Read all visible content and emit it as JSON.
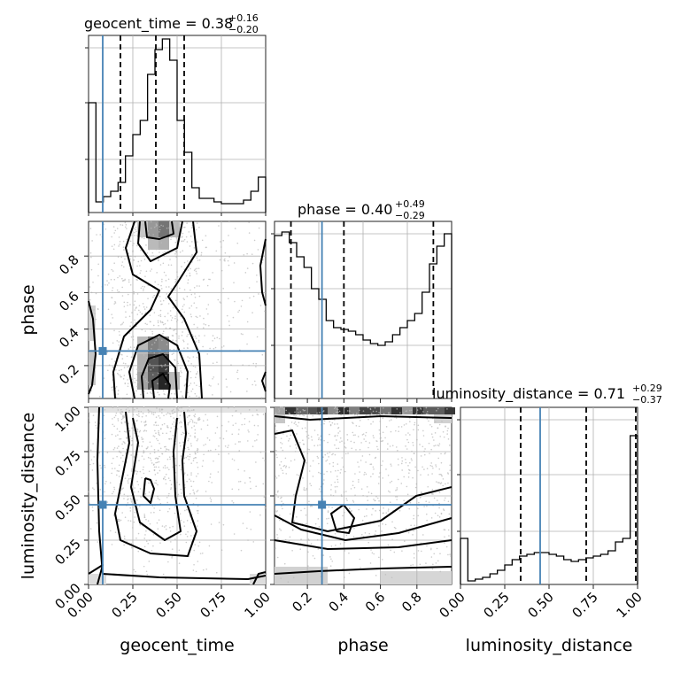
{
  "colors": {
    "truth": "#4682b4",
    "hist": "#000000",
    "grid": "#b0b0b0",
    "scatter": "#bbbbbb"
  },
  "chart_data": [
    {
      "type": "histogram",
      "parameter": "geocent_time",
      "title": "geocent_time = 0.38",
      "title_sup": "+0.16",
      "title_sub": "−0.20",
      "range": [
        0,
        1
      ],
      "truth": 0.08,
      "quantiles": [
        0.18,
        0.38,
        0.54
      ],
      "counts": [
        0.62,
        0.06,
        0.09,
        0.12,
        0.17,
        0.32,
        0.44,
        0.52,
        0.78,
        0.92,
        0.98,
        0.86,
        0.52,
        0.34,
        0.14,
        0.08,
        0.08,
        0.06,
        0.05,
        0.05,
        0.05,
        0.07,
        0.12,
        0.2
      ]
    },
    {
      "type": "histogram",
      "parameter": "phase",
      "title": "phase = 0.40",
      "title_sup": "+0.49",
      "title_sub": "−0.29",
      "range": [
        0.02,
        0.99
      ],
      "truth": 0.28,
      "quantiles": [
        0.11,
        0.4,
        0.89
      ],
      "counts": [
        0.92,
        0.94,
        0.88,
        0.8,
        0.74,
        0.62,
        0.56,
        0.44,
        0.4,
        0.39,
        0.38,
        0.36,
        0.33,
        0.31,
        0.3,
        0.32,
        0.36,
        0.4,
        0.44,
        0.48,
        0.6,
        0.76,
        0.86,
        0.93
      ]
    },
    {
      "type": "histogram",
      "parameter": "luminosity_distance",
      "title": "luminosity_distance = 0.71",
      "title_sup": "+0.29",
      "title_sub": "−0.37",
      "range": [
        0,
        1
      ],
      "truth": 0.45,
      "quantiles": [
        0.34,
        0.71,
        0.99
      ],
      "counts": [
        0.26,
        0.02,
        0.03,
        0.04,
        0.06,
        0.08,
        0.11,
        0.14,
        0.16,
        0.17,
        0.18,
        0.18,
        0.17,
        0.16,
        0.14,
        0.13,
        0.14,
        0.15,
        0.16,
        0.17,
        0.19,
        0.24,
        0.26,
        0.84
      ]
    },
    {
      "type": "contour2d",
      "x_param": "geocent_time",
      "y_param": "phase",
      "x_range": [
        0,
        1
      ],
      "y_range": [
        0.02,
        0.99
      ],
      "truth": [
        0.08,
        0.28
      ],
      "x_ticks": [
        "0.00",
        "0.25",
        "0.50",
        "0.75",
        "1.00"
      ],
      "y_ticks": [
        "0.2",
        "0.4",
        "0.6",
        "0.8"
      ],
      "y_tick_values": [
        0.2,
        0.4,
        0.6,
        0.8
      ]
    },
    {
      "type": "contour2d",
      "x_param": "geocent_time",
      "y_param": "luminosity_distance",
      "x_range": [
        0,
        1
      ],
      "y_range": [
        0,
        1
      ],
      "truth": [
        0.08,
        0.45
      ],
      "y_ticks": [
        "0.00",
        "0.25",
        "0.50",
        "0.75",
        "1.00"
      ]
    },
    {
      "type": "contour2d",
      "x_param": "phase",
      "y_param": "luminosity_distance",
      "x_range": [
        0.02,
        0.99
      ],
      "y_range": [
        0,
        1
      ],
      "truth": [
        0.28,
        0.45
      ],
      "x_ticks": [
        "0.2",
        "0.4",
        "0.6",
        "0.8"
      ],
      "x_tick_values": [
        0.2,
        0.4,
        0.6,
        0.8
      ]
    }
  ],
  "axis_labels": {
    "x": [
      "geocent_time",
      "phase",
      "luminosity_distance"
    ],
    "y": [
      "phase",
      "luminosity_distance"
    ]
  },
  "ticks": {
    "unit": [
      "0.00",
      "0.25",
      "0.50",
      "0.75",
      "1.00"
    ],
    "phase": [
      "0.2",
      "0.4",
      "0.6",
      "0.8"
    ]
  }
}
